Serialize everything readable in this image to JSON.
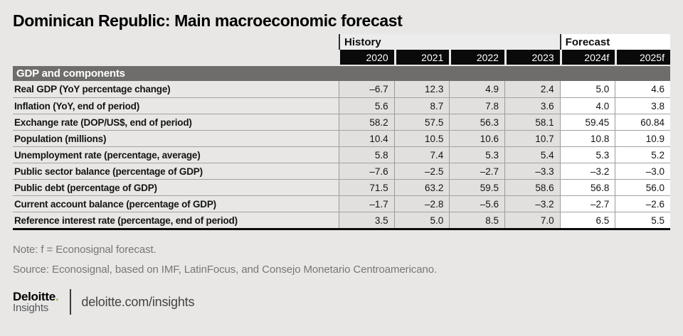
{
  "page": {
    "title": "Dominican Republic: Main macroeconomic forecast",
    "note": "Note: f = Econosignal forecast.",
    "source": "Source: Econosignal, based on IMF, LatinFocus, and Consejo Monetario Centroamericano.",
    "footer": {
      "brand_name": "Deloitte",
      "brand_dot": ".",
      "brand_sub": "Insights",
      "brand_url": "deloitte.com/insights"
    }
  },
  "colors": {
    "page_bg": "#e8e7e5",
    "year_header_bg": "#0a0a0a",
    "section_bar_bg": "#6e6d6c",
    "history_cell_bg": "#e1e0de",
    "forecast_cell_bg": "#ffffff",
    "brand_green": "#86bc25"
  },
  "table": {
    "group_headers": [
      {
        "label": "History",
        "span": 4
      },
      {
        "label": "Forecast",
        "span": 2
      }
    ],
    "years": [
      "2020",
      "2021",
      "2022",
      "2023",
      "2024f",
      "2025f"
    ],
    "section": "GDP and components",
    "rows": [
      {
        "label": "Real GDP (YoY percentage change)",
        "values": [
          "–6.7",
          "12.3",
          "4.9",
          "2.4",
          "5.0",
          "4.6"
        ]
      },
      {
        "label": "Inflation (YoY, end of period)",
        "values": [
          "5.6",
          "8.7",
          "7.8",
          "3.6",
          "4.0",
          "3.8"
        ]
      },
      {
        "label": "Exchange rate (DOP/US$, end of period)",
        "values": [
          "58.2",
          "57.5",
          "56.3",
          "58.1",
          "59.45",
          "60.84"
        ]
      },
      {
        "label": "Population (millions)",
        "values": [
          "10.4",
          "10.5",
          "10.6",
          "10.7",
          "10.8",
          "10.9"
        ]
      },
      {
        "label": "Unemployment rate (percentage, average)",
        "values": [
          "5.8",
          "7.4",
          "5.3",
          "5.4",
          "5.3",
          "5.2"
        ]
      },
      {
        "label": "Public sector balance (percentage of GDP)",
        "values": [
          "–7.6",
          "–2.5",
          "–2.7",
          "–3.3",
          "–3.2",
          "–3.0"
        ]
      },
      {
        "label": "Public debt (percentage of GDP)",
        "values": [
          "71.5",
          "63.2",
          "59.5",
          "58.6",
          "56.8",
          "56.0"
        ]
      },
      {
        "label": "Current account balance (percentage of GDP)",
        "values": [
          "–1.7",
          "–2.8",
          "–5.6",
          "–3.2",
          "–2.7",
          "–2.6"
        ]
      },
      {
        "label": "Reference interest rate (percentage, end of period)",
        "values": [
          "3.5",
          "5.0",
          "8.5",
          "7.0",
          "6.5",
          "5.5"
        ]
      }
    ]
  },
  "chart_data": {
    "type": "table",
    "title": "Dominican Republic: Main macroeconomic forecast",
    "column_groups": [
      {
        "name": "History",
        "columns": [
          "2020",
          "2021",
          "2022",
          "2023"
        ]
      },
      {
        "name": "Forecast",
        "columns": [
          "2024f",
          "2025f"
        ]
      }
    ],
    "columns": [
      "2020",
      "2021",
      "2022",
      "2023",
      "2024f",
      "2025f"
    ],
    "section": "GDP and components",
    "rows": [
      {
        "label": "Real GDP (YoY percentage change)",
        "values": [
          -6.7,
          12.3,
          4.9,
          2.4,
          5.0,
          4.6
        ]
      },
      {
        "label": "Inflation (YoY, end of period)",
        "values": [
          5.6,
          8.7,
          7.8,
          3.6,
          4.0,
          3.8
        ]
      },
      {
        "label": "Exchange rate (DOP/US$, end of period)",
        "values": [
          58.2,
          57.5,
          56.3,
          58.1,
          59.45,
          60.84
        ]
      },
      {
        "label": "Population (millions)",
        "values": [
          10.4,
          10.5,
          10.6,
          10.7,
          10.8,
          10.9
        ]
      },
      {
        "label": "Unemployment rate (percentage, average)",
        "values": [
          5.8,
          7.4,
          5.3,
          5.4,
          5.3,
          5.2
        ]
      },
      {
        "label": "Public sector balance (percentage of GDP)",
        "values": [
          -7.6,
          -2.5,
          -2.7,
          -3.3,
          -3.2,
          -3.0
        ]
      },
      {
        "label": "Public debt (percentage of GDP)",
        "values": [
          71.5,
          63.2,
          59.5,
          58.6,
          56.8,
          56.0
        ]
      },
      {
        "label": "Current account balance (percentage of GDP)",
        "values": [
          -1.7,
          -2.8,
          -5.6,
          -3.2,
          -2.7,
          -2.6
        ]
      },
      {
        "label": "Reference interest rate (percentage, end of period)",
        "values": [
          3.5,
          5.0,
          8.5,
          7.0,
          6.5,
          5.5
        ]
      }
    ],
    "note": "Note: f = Econosignal forecast.",
    "source": "Source: Econosignal, based on IMF, LatinFocus, and Consejo Monetario Centroamericano."
  }
}
